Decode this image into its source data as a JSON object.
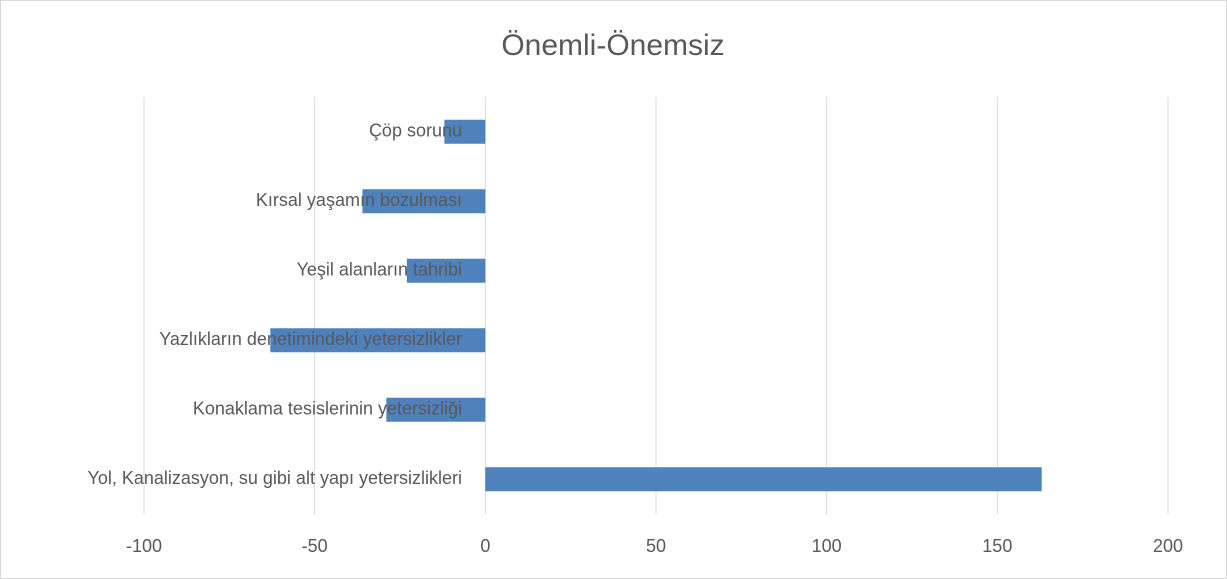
{
  "chart_data": {
    "type": "hbar",
    "title": "Önemli-Önemsiz",
    "categories": [
      "Çöp sorunu",
      "Kırsal yaşamın bozulması",
      "Yeşil alanların tahribi",
      "Yazlıkların denetimindeki yetersizlikler",
      "Konaklama tesislerinin yetersizliği",
      "Yol, Kanalizasyon, su gibi alt yapı yetersizlikleri"
    ],
    "values": [
      -12,
      -36,
      -23,
      -63,
      -29,
      163
    ],
    "color": "#4f81bd",
    "xlim": [
      -100,
      200
    ],
    "xticks": [
      -100,
      -50,
      0,
      50,
      100,
      150,
      200
    ],
    "grid": true
  }
}
